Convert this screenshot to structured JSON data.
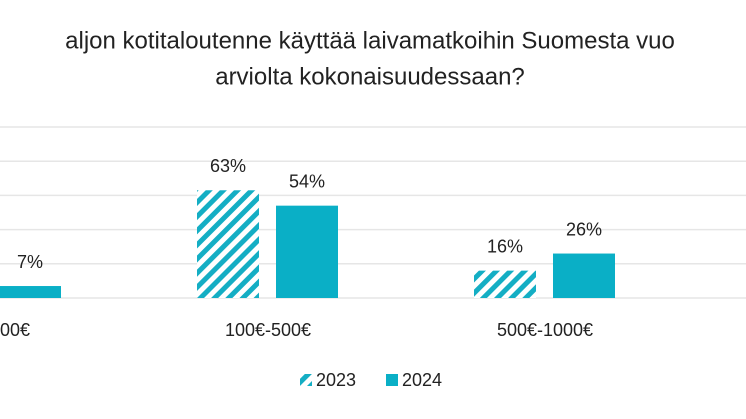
{
  "chart_data": {
    "type": "bar",
    "title": [
      "aljon kotitaloutenne käyttää laivamatkoihin Suomesta vuo",
      "arviolta kokonaisuudessaan?"
    ],
    "categories": [
      "00€",
      "100€-500€",
      "500€-1000€"
    ],
    "series": [
      {
        "name": "2023",
        "color": "#14aec4",
        "pattern": "hatch",
        "values": [
          null,
          63,
          16
        ],
        "value_labels": [
          null,
          "63%",
          "16%"
        ]
      },
      {
        "name": "2024",
        "color": "#0aafc6",
        "pattern": "solid",
        "values": [
          7,
          54,
          26
        ],
        "value_labels": [
          "7%",
          "54%",
          "26%"
        ]
      }
    ],
    "ylim": [
      0,
      100
    ],
    "yticks": [
      0,
      20,
      40,
      60,
      80,
      100
    ],
    "grid": true,
    "legend": "bottom"
  }
}
